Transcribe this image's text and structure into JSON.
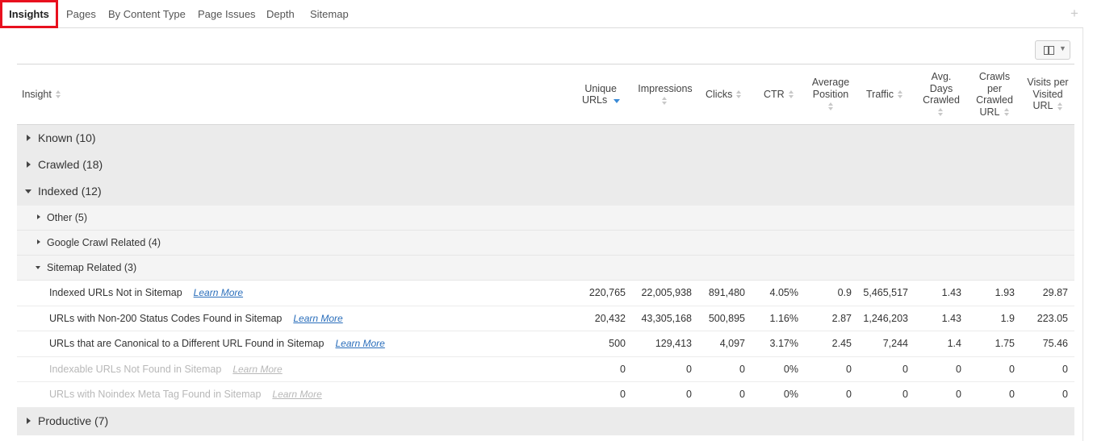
{
  "tabs": [
    {
      "label": "Insights",
      "active": true
    },
    {
      "label": "Pages"
    },
    {
      "label": "By Content Type"
    },
    {
      "label": "Page Issues"
    },
    {
      "label": "Depth"
    },
    {
      "label": "Sitemap"
    }
  ],
  "add_tab_icon": "plus-icon",
  "column_toggle_icon": "columns-icon",
  "columns": {
    "insight": "Insight",
    "unique_urls": [
      "Unique",
      "URLs"
    ],
    "impressions": "Impressions",
    "clicks": "Clicks",
    "ctr": "CTR",
    "avg_position": [
      "Average",
      "Position"
    ],
    "traffic": "Traffic",
    "avg_days_crawled": [
      "Avg.",
      "Days",
      "Crawled"
    ],
    "crawls_per_crawled_url": [
      "Crawls",
      "per",
      "Crawled",
      "URL"
    ],
    "visits_per_visited_url": [
      "Visits per",
      "Visited",
      "URL"
    ]
  },
  "sort": {
    "column": "Unique URLs",
    "direction": "descending"
  },
  "groups": {
    "known": "Known (10)",
    "crawled": "Crawled (18)",
    "indexed": "Indexed (12)",
    "productive": "Productive (7)"
  },
  "subgroups": {
    "other": "Other (5)",
    "google_crawl": "Google Crawl Related (4)",
    "sitemap": "Sitemap Related (3)"
  },
  "learn_more": "Learn More",
  "rows": [
    {
      "name": "Indexed URLs Not in Sitemap",
      "unique_urls": "220,765",
      "impressions": "22,005,938",
      "clicks": "891,480",
      "ctr": "4.05%",
      "avg_position": "0.9",
      "traffic": "5,465,517",
      "avg_days": "1.43",
      "crawls_per": "1.93",
      "visits_per": "29.87",
      "muted": false
    },
    {
      "name": "URLs with Non-200 Status Codes Found in Sitemap",
      "unique_urls": "20,432",
      "impressions": "43,305,168",
      "clicks": "500,895",
      "ctr": "1.16%",
      "avg_position": "2.87",
      "traffic": "1,246,203",
      "avg_days": "1.43",
      "crawls_per": "1.9",
      "visits_per": "223.05",
      "muted": false
    },
    {
      "name": "URLs that are Canonical to a Different URL Found in Sitemap",
      "unique_urls": "500",
      "impressions": "129,413",
      "clicks": "4,097",
      "ctr": "3.17%",
      "avg_position": "2.45",
      "traffic": "7,244",
      "avg_days": "1.4",
      "crawls_per": "1.75",
      "visits_per": "75.46",
      "muted": false
    },
    {
      "name": "Indexable URLs Not Found in Sitemap",
      "unique_urls": "0",
      "impressions": "0",
      "clicks": "0",
      "ctr": "0%",
      "avg_position": "0",
      "traffic": "0",
      "avg_days": "0",
      "crawls_per": "0",
      "visits_per": "0",
      "muted": true
    },
    {
      "name": "URLs with Noindex Meta Tag Found in Sitemap",
      "unique_urls": "0",
      "impressions": "0",
      "clicks": "0",
      "ctr": "0%",
      "avg_position": "0",
      "traffic": "0",
      "avg_days": "0",
      "crawls_per": "0",
      "visits_per": "0",
      "muted": true
    }
  ]
}
